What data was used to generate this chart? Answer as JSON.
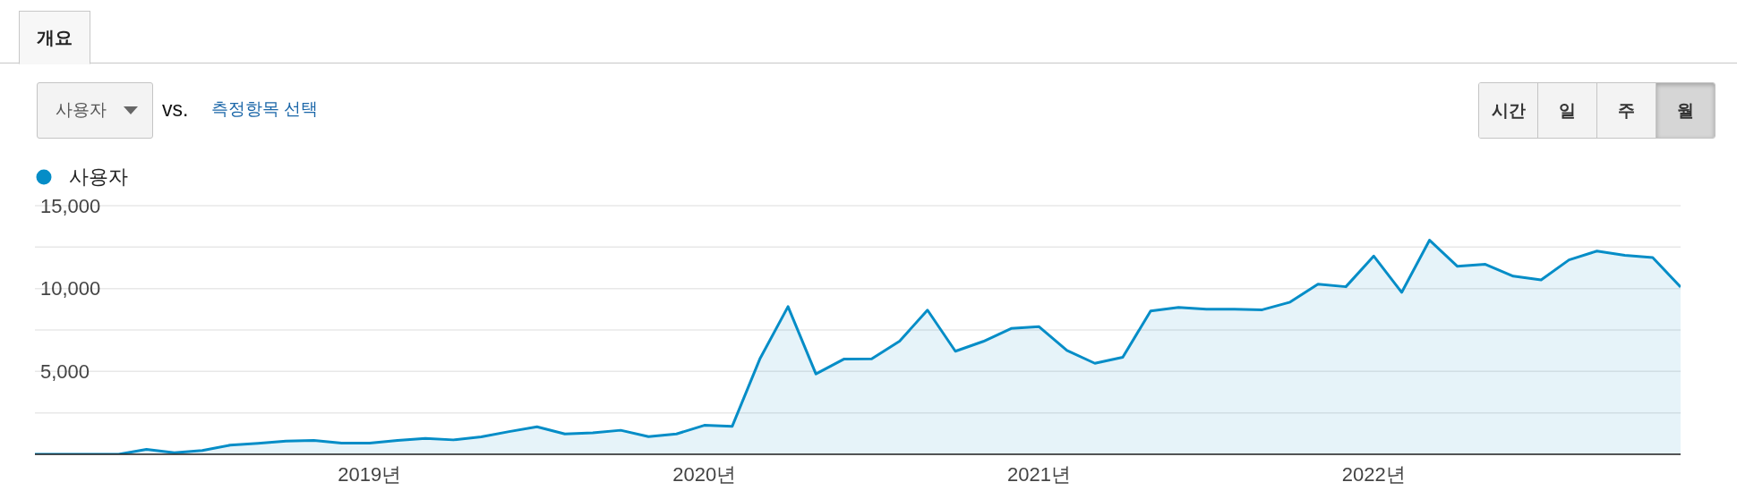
{
  "chart_data": {
    "type": "area",
    "annotations": [
      "개요",
      "사용자",
      "vs.",
      "측정항목 선택",
      "시간",
      "일",
      "주",
      "월"
    ],
    "x": [
      "2018-01",
      "2018-02",
      "2018-03",
      "2018-04",
      "2018-05",
      "2018-06",
      "2018-07",
      "2018-08",
      "2018-09",
      "2018-10",
      "2018-11",
      "2018-12",
      "2019-01",
      "2019-02",
      "2019-03",
      "2019-04",
      "2019-05",
      "2019-06",
      "2019-07",
      "2019-08",
      "2019-09",
      "2019-10",
      "2019-11",
      "2019-12",
      "2020-01",
      "2020-02",
      "2020-03",
      "2020-04",
      "2020-05",
      "2020-06",
      "2020-07",
      "2020-08",
      "2020-09",
      "2020-10",
      "2020-11",
      "2020-12",
      "2021-01",
      "2021-02",
      "2021-03",
      "2021-04",
      "2021-05",
      "2021-06",
      "2021-07",
      "2021-08",
      "2021-09",
      "2021-10",
      "2021-11",
      "2021-12",
      "2022-01",
      "2022-02",
      "2022-03",
      "2022-04",
      "2022-05",
      "2022-06",
      "2022-07",
      "2022-08",
      "2022-09",
      "2022-10",
      "2022-11",
      "2022-12"
    ],
    "series": [
      {
        "name": "사용자",
        "color": "#058dc7",
        "values": [
          0,
          0,
          0,
          0,
          300,
          100,
          230,
          550,
          660,
          800,
          840,
          680,
          680,
          840,
          960,
          870,
          1050,
          1370,
          1660,
          1230,
          1300,
          1450,
          1070,
          1230,
          1750,
          1690,
          5790,
          8910,
          4850,
          5740,
          5760,
          6830,
          8700,
          6220,
          6810,
          7590,
          7700,
          6260,
          5490,
          5850,
          8650,
          8860,
          8750,
          8750,
          8720,
          9180,
          10270,
          10110,
          11960,
          9770,
          12920,
          11340,
          11460,
          10750,
          10520,
          11730,
          12260,
          12000,
          11870,
          10090
        ]
      }
    ],
    "xlim": [
      "2018-01",
      "2022-12"
    ],
    "xticks": [
      {
        "value": "2019-01",
        "label": "2019년"
      },
      {
        "value": "2020-01",
        "label": "2020년"
      },
      {
        "value": "2021-01",
        "label": "2021년"
      },
      {
        "value": "2022-01",
        "label": "2022년"
      }
    ],
    "ylim": [
      0,
      15000
    ],
    "yticks": [
      {
        "value": 2500,
        "label": null
      },
      {
        "value": 5000,
        "label": "5,000"
      },
      {
        "value": 7500,
        "label": null
      },
      {
        "value": 10000,
        "label": "10,000"
      },
      {
        "value": 12500,
        "label": null
      },
      {
        "value": 15000,
        "label": "15,000"
      }
    ],
    "grid": "y",
    "legend": "top left"
  }
}
